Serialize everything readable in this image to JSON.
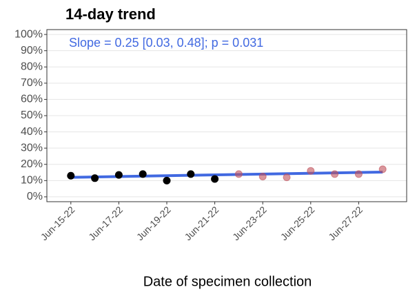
{
  "chart_data": {
    "type": "scatter",
    "title": "14-day trend",
    "annotation": "Slope = 0.25 [0.03, 0.48]; p = 0.031",
    "annotation_color": "#4169e1",
    "x_label": "Date of specimen collection",
    "xlim": [
      "2022-06-14",
      "2022-06-29"
    ],
    "xticks": [
      {
        "value": "2022-06-15",
        "label": "Jun-15-22"
      },
      {
        "value": "2022-06-17",
        "label": "Jun-17-22"
      },
      {
        "value": "2022-06-19",
        "label": "Jun-19-22"
      },
      {
        "value": "2022-06-21",
        "label": "Jun-21-22"
      },
      {
        "value": "2022-06-23",
        "label": "Jun-23-22"
      },
      {
        "value": "2022-06-25",
        "label": "Jun-25-22"
      },
      {
        "value": "2022-06-27",
        "label": "Jun-27-22"
      }
    ],
    "ylim": [
      -3,
      103
    ],
    "yticks": [
      {
        "value": 0,
        "label": "0%"
      },
      {
        "value": 10,
        "label": "10%"
      },
      {
        "value": 20,
        "label": "20%"
      },
      {
        "value": 30,
        "label": "30%"
      },
      {
        "value": 40,
        "label": "40%"
      },
      {
        "value": 50,
        "label": "50%"
      },
      {
        "value": 60,
        "label": "60%"
      },
      {
        "value": 70,
        "label": "70%"
      },
      {
        "value": 80,
        "label": "80%"
      },
      {
        "value": 90,
        "label": "90%"
      },
      {
        "value": 100,
        "label": "100%"
      }
    ],
    "grid": true,
    "series": [
      {
        "type": "line",
        "color": "#4169e1",
        "x": [
          "2022-06-15",
          "2022-06-28"
        ],
        "values": [
          12,
          15.25
        ]
      },
      {
        "type": "points",
        "color": "#000000",
        "opacity": 1,
        "x": [
          "2022-06-15",
          "2022-06-16",
          "2022-06-17",
          "2022-06-18",
          "2022-06-19",
          "2022-06-20",
          "2022-06-21"
        ],
        "values": [
          13,
          11.5,
          13.5,
          14,
          10,
          14,
          11
        ]
      },
      {
        "type": "points",
        "color": "#c0505a",
        "opacity": 0.6,
        "x": [
          "2022-06-22",
          "2022-06-23",
          "2022-06-24",
          "2022-06-25",
          "2022-06-26",
          "2022-06-27",
          "2022-06-28"
        ],
        "values": [
          14,
          12.5,
          12,
          16,
          14,
          14,
          17
        ]
      }
    ]
  }
}
